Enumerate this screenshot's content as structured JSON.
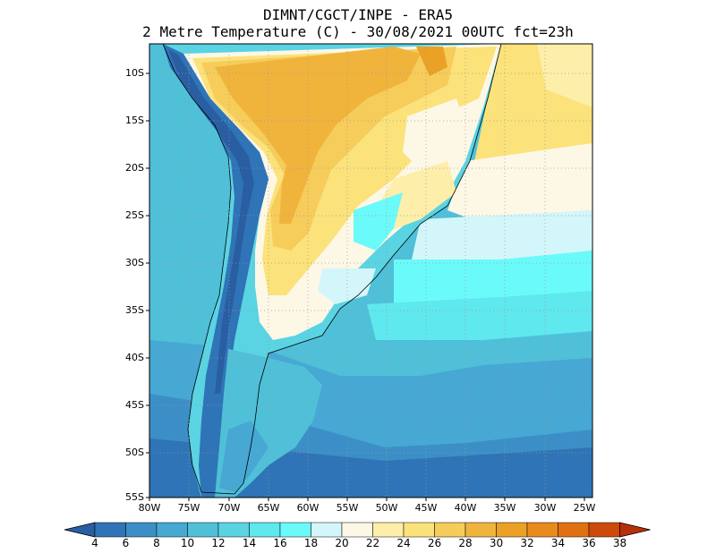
{
  "header": {
    "line1": "DIMNT/CGCT/INPE -  ERA5",
    "line2": "2 Metre Temperature (C) -  30/08/2021 00UTC fct=23h"
  },
  "map": {
    "lat_labels": [
      "10S",
      "15S",
      "20S",
      "25S",
      "30S",
      "35S",
      "40S",
      "45S",
      "50S",
      "55S"
    ],
    "lon_labels": [
      "80W",
      "75W",
      "70W",
      "65W",
      "60W",
      "55W",
      "50W",
      "45W",
      "40W",
      "35W",
      "30W",
      "25W"
    ]
  },
  "colorbar": {
    "labels": [
      "4",
      "6",
      "8",
      "10",
      "12",
      "14",
      "16",
      "18",
      "20",
      "22",
      "24",
      "26",
      "28",
      "30",
      "32",
      "34",
      "36",
      "38"
    ],
    "colors": [
      "#2a5ea3",
      "#2f74b6",
      "#3b8fc6",
      "#46a8d3",
      "#4fc0d8",
      "#5ad3e3",
      "#5fe8ee",
      "#6bfafa",
      "#d3f6fa",
      "#fdf7e6",
      "#fdeeaa",
      "#fbe27a",
      "#f6cc5a",
      "#f0b43c",
      "#eba126",
      "#e88a1c",
      "#e07012",
      "#cd4b0a",
      "#b8300a"
    ]
  }
}
